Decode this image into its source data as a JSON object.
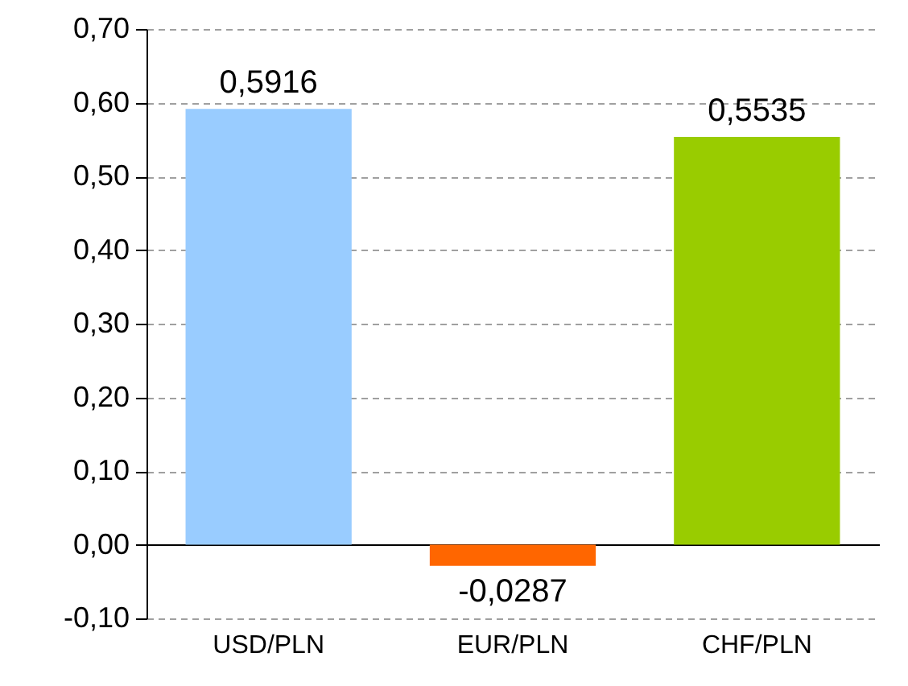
{
  "chart_data": {
    "type": "bar",
    "categories": [
      "USD/PLN",
      "EUR/PLN",
      "CHF/PLN"
    ],
    "values": [
      0.5916,
      -0.0287,
      0.5535
    ],
    "colors": [
      "#99ccff",
      "#ff6600",
      "#99cc00"
    ],
    "value_labels": [
      "0,5916",
      "-0,0287",
      "0,5535"
    ],
    "ylim": [
      -0.1,
      0.7
    ],
    "yticks": [
      {
        "value": -0.1,
        "label": "-0,10"
      },
      {
        "value": 0,
        "label": "0,00"
      },
      {
        "value": 0.1,
        "label": "0,10"
      },
      {
        "value": 0.2,
        "label": "0,20"
      },
      {
        "value": 0.3,
        "label": "0,30"
      },
      {
        "value": 0.4,
        "label": "0,40"
      },
      {
        "value": 0.5,
        "label": "0,50"
      },
      {
        "value": 0.6,
        "label": "0,60"
      },
      {
        "value": 0.7,
        "label": "0,70"
      }
    ],
    "grid": "y"
  }
}
